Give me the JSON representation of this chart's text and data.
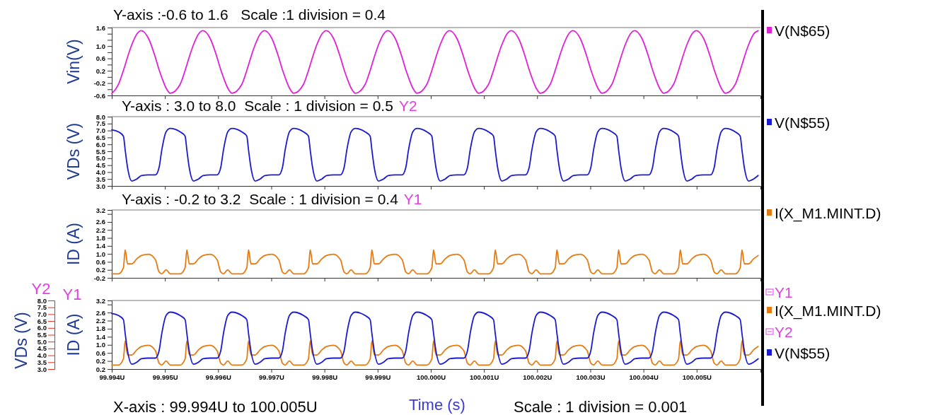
{
  "chart_data": [
    {
      "type": "line",
      "title": "Y-axis :-0.6 to 1.6   Scale :1 division = 0.4",
      "ylabel": "Vin(V)",
      "legend": "right",
      "tick_labels": "y",
      "xlim": [
        99.994,
        100.0062
      ],
      "xticks": [
        {
          "value": 99.994,
          "label": null
        },
        {
          "value": 99.995,
          "label": null
        },
        {
          "value": 99.996,
          "label": null
        },
        {
          "value": 99.997,
          "label": null
        },
        {
          "value": 99.998,
          "label": null
        },
        {
          "value": 99.999,
          "label": null
        },
        {
          "value": 100,
          "label": null
        },
        {
          "value": 100.001,
          "label": null
        },
        {
          "value": 100.002,
          "label": null
        },
        {
          "value": 100.003,
          "label": null
        },
        {
          "value": 100.004,
          "label": null
        },
        {
          "value": 100.005,
          "label": null
        }
      ],
      "ylim": [
        -0.6,
        1.6
      ],
      "yticks": [
        -0.6,
        {
          "value": -0.4,
          "label": null
        },
        -0.2,
        {
          "value": 0,
          "label": null
        },
        0.2,
        {
          "value": 0.4,
          "label": null
        },
        0.6,
        {
          "value": 0.8,
          "label": null
        },
        {
          "value": 1,
          "label": "1.0"
        },
        {
          "value": 1.2,
          "label": null
        },
        {
          "value": 1.4,
          "label": null
        },
        1.6
      ],
      "x": [
        99.994,
        99.994126,
        99.994219,
        99.994252,
        99.994298,
        99.994378,
        99.994471,
        99.994557,
        99.99469,
        99.994822,
        99.994888,
        99.994941,
        99.995021,
        99.995101,
        99.995286,
        99.995379,
        99.995412,
        99.995458,
        99.995538,
        99.995631,
        99.995717,
        99.99585,
        99.995982,
        99.996048,
        99.996101,
        99.996181,
        99.996261,
        99.996446,
        99.996539,
        99.996572,
        99.996618,
        99.996698,
        99.996791,
        99.996877,
        99.99701,
        99.997142,
        99.997208,
        99.997261,
        99.997341,
        99.997421,
        99.997606,
        99.997699,
        99.997732,
        99.997778,
        99.997858,
        99.997951,
        99.998037,
        99.99817,
        99.998302,
        99.998368,
        99.998421,
        99.998501,
        99.998581,
        99.998766,
        99.998859,
        99.998892,
        99.998938,
        99.999018,
        99.999111,
        99.999197,
        99.99933,
        99.999462,
        99.999528,
        99.999581,
        99.999661,
        99.999741,
        99.999926,
        100.000019,
        100.000052,
        100.000098,
        100.000178,
        100.000271,
        100.000357,
        100.00049,
        100.000622,
        100.000688,
        100.000741,
        100.000821,
        100.000901,
        100.001086,
        100.001179,
        100.001212,
        100.001258,
        100.001338,
        100.001431,
        100.001517,
        100.00165,
        100.001782,
        100.001848,
        100.001901,
        100.001981,
        100.002061,
        100.002246,
        100.002339,
        100.002372,
        100.002418,
        100.002498,
        100.002591,
        100.002677,
        100.00281,
        100.002942,
        100.003008,
        100.003061,
        100.003141,
        100.003221,
        100.003406,
        100.003499,
        100.003532,
        100.003578,
        100.003658,
        100.003751,
        100.003837,
        100.00397,
        100.004102,
        100.004168,
        100.004221,
        100.004301,
        100.004381,
        100.004566,
        100.004659,
        100.004692,
        100.004738,
        100.004818,
        100.004911,
        100.004997,
        100.00513,
        100.005262,
        100.005328,
        100.005381,
        100.005461,
        100.005541,
        100.005726,
        100.005819,
        100.005852,
        100.005898,
        100.005978,
        100.006071,
        100.006157
      ],
      "series": [
        {
          "name": "V(N$65)",
          "color": "#e020d8",
          "values": [
            -0.54,
            -0.24,
            0.21,
            0.39,
            0.65,
            1.05,
            1.39,
            1.5,
            1.25,
            0.62,
            0.24,
            -0.02,
            -0.36,
            -0.53,
            -0.24,
            0.21,
            0.39,
            0.65,
            1.05,
            1.39,
            1.5,
            1.25,
            0.62,
            0.24,
            -0.02,
            -0.36,
            -0.53,
            -0.24,
            0.21,
            0.39,
            0.65,
            1.05,
            1.39,
            1.5,
            1.25,
            0.62,
            0.24,
            -0.02,
            -0.36,
            -0.53,
            -0.24,
            0.21,
            0.39,
            0.65,
            1.05,
            1.39,
            1.5,
            1.25,
            0.62,
            0.24,
            -0.02,
            -0.36,
            -0.53,
            -0.24,
            0.21,
            0.39,
            0.65,
            1.05,
            1.39,
            1.5,
            1.25,
            0.62,
            0.24,
            -0.02,
            -0.36,
            -0.53,
            -0.24,
            0.21,
            0.39,
            0.65,
            1.05,
            1.39,
            1.5,
            1.25,
            0.62,
            0.24,
            -0.02,
            -0.36,
            -0.53,
            -0.24,
            0.21,
            0.39,
            0.65,
            1.05,
            1.39,
            1.5,
            1.25,
            0.62,
            0.24,
            -0.02,
            -0.36,
            -0.53,
            -0.24,
            0.21,
            0.39,
            0.65,
            1.05,
            1.39,
            1.5,
            1.25,
            0.62,
            0.24,
            -0.02,
            -0.36,
            -0.53,
            -0.24,
            0.21,
            0.39,
            0.65,
            1.05,
            1.39,
            1.5,
            1.25,
            0.62,
            0.24,
            -0.02,
            -0.36,
            -0.53,
            -0.24,
            0.21,
            0.39,
            0.65,
            1.05,
            1.39,
            1.5,
            1.25,
            0.62,
            0.24,
            -0.02,
            -0.36,
            -0.53,
            -0.24,
            0.21,
            0.39,
            0.65,
            1.05,
            1.39,
            1.5
          ]
        }
      ]
    },
    {
      "type": "line",
      "title": "Y-axis : 3.0 to 8.0  Scale : 1 division = 0.5",
      "annotations": [
        "Y2"
      ],
      "ylabel": "VDs (V)",
      "legend": "right",
      "tick_labels": "y",
      "xlim": [
        99.994,
        100.0062
      ],
      "xticks": [
        {
          "value": 99.994,
          "label": null
        },
        {
          "value": 99.995,
          "label": null
        },
        {
          "value": 99.996,
          "label": null
        },
        {
          "value": 99.997,
          "label": null
        },
        {
          "value": 99.998,
          "label": null
        },
        {
          "value": 99.999,
          "label": null
        },
        {
          "value": 100,
          "label": null
        },
        {
          "value": 100.001,
          "label": null
        },
        {
          "value": 100.002,
          "label": null
        },
        {
          "value": 100.003,
          "label": null
        },
        {
          "value": 100.004,
          "label": null
        },
        {
          "value": 100.005,
          "label": null
        }
      ],
      "ylim": [
        3,
        8
      ],
      "yticks": [
        {
          "value": 3,
          "label": "3.0"
        },
        3.5,
        {
          "value": 4,
          "label": "4.0"
        },
        4.5,
        {
          "value": 5,
          "label": "5.0"
        },
        5.5,
        {
          "value": 6,
          "label": "6.0"
        },
        6.5,
        {
          "value": 7,
          "label": "7.0"
        },
        7.5,
        {
          "value": 8,
          "label": "8.0"
        }
      ],
      "x": [
        99.994,
        99.994126,
        99.994219,
        99.994252,
        99.994298,
        99.994378,
        99.994471,
        99.994557,
        99.99469,
        99.994822,
        99.994888,
        99.994941,
        99.995021,
        99.995101,
        99.995286,
        99.995379,
        99.995412,
        99.995458,
        99.995538,
        99.995631,
        99.995717,
        99.99585,
        99.995982,
        99.996048,
        99.996101,
        99.996181,
        99.996261,
        99.996446,
        99.996539,
        99.996572,
        99.996618,
        99.996698,
        99.996791,
        99.996877,
        99.99701,
        99.997142,
        99.997208,
        99.997261,
        99.997341,
        99.997421,
        99.997606,
        99.997699,
        99.997732,
        99.997778,
        99.997858,
        99.997951,
        99.998037,
        99.99817,
        99.998302,
        99.998368,
        99.998421,
        99.998501,
        99.998581,
        99.998766,
        99.998859,
        99.998892,
        99.998938,
        99.999018,
        99.999111,
        99.999197,
        99.99933,
        99.999462,
        99.999528,
        99.999581,
        99.999661,
        99.999741,
        99.999926,
        100.000019,
        100.000052,
        100.000098,
        100.000178,
        100.000271,
        100.000357,
        100.00049,
        100.000622,
        100.000688,
        100.000741,
        100.000821,
        100.000901,
        100.001086,
        100.001179,
        100.001212,
        100.001258,
        100.001338,
        100.001431,
        100.001517,
        100.00165,
        100.001782,
        100.001848,
        100.001901,
        100.001981,
        100.002061,
        100.002246,
        100.002339,
        100.002372,
        100.002418,
        100.002498,
        100.002591,
        100.002677,
        100.00281,
        100.002942,
        100.003008,
        100.003061,
        100.003141,
        100.003221,
        100.003406,
        100.003499,
        100.003532,
        100.003578,
        100.003658,
        100.003751,
        100.003837,
        100.00397,
        100.004102,
        100.004168,
        100.004221,
        100.004301,
        100.004381,
        100.004566,
        100.004659,
        100.004692,
        100.004738,
        100.004818,
        100.004911,
        100.004997,
        100.00513,
        100.005262,
        100.005328,
        100.005381,
        100.005461,
        100.005541,
        100.005726,
        100.005819,
        100.005852,
        100.005898,
        100.005978,
        100.006071,
        100.006157
      ],
      "series": [
        {
          "name": "V(N$55)",
          "color": "#1a1ad0",
          "values": [
            7.05,
            6.9,
            6.6,
            5.6,
            4.3,
            3.35,
            3.5,
            3.75,
            3.8,
            3.8,
            4.3,
            5.6,
            6.9,
            7.15,
            6.9,
            6.6,
            5.6,
            4.3,
            3.35,
            3.5,
            3.75,
            3.8,
            3.8,
            4.3,
            5.6,
            6.9,
            7.15,
            6.9,
            6.6,
            5.6,
            4.3,
            3.35,
            3.5,
            3.75,
            3.8,
            3.8,
            4.3,
            5.6,
            6.9,
            7.15,
            6.9,
            6.6,
            5.6,
            4.3,
            3.35,
            3.5,
            3.75,
            3.8,
            3.8,
            4.3,
            5.6,
            6.9,
            7.15,
            6.9,
            6.6,
            5.6,
            4.3,
            3.35,
            3.5,
            3.75,
            3.8,
            3.8,
            4.3,
            5.6,
            6.9,
            7.15,
            6.9,
            6.6,
            5.6,
            4.3,
            3.35,
            3.5,
            3.75,
            3.8,
            3.8,
            4.3,
            5.6,
            6.9,
            7.15,
            6.9,
            6.6,
            5.6,
            4.3,
            3.35,
            3.5,
            3.75,
            3.8,
            3.8,
            4.3,
            5.6,
            6.9,
            7.15,
            6.9,
            6.6,
            5.6,
            4.3,
            3.35,
            3.5,
            3.75,
            3.8,
            3.8,
            4.3,
            5.6,
            6.9,
            7.15,
            6.9,
            6.6,
            5.6,
            4.3,
            3.35,
            3.5,
            3.75,
            3.8,
            3.8,
            4.3,
            5.6,
            6.9,
            7.15,
            6.9,
            6.6,
            5.6,
            4.3,
            3.35,
            3.5,
            3.75,
            3.8,
            3.8,
            4.3,
            5.6,
            6.9,
            7.15,
            6.9,
            6.6,
            5.6,
            4.3,
            3.35,
            3.5,
            3.75
          ]
        }
      ]
    },
    {
      "type": "line",
      "title": "Y-axis : -0.2 to 3.2  Scale : 1 division = 0.4",
      "annotations": [
        "Y1"
      ],
      "ylabel": "ID (A)",
      "legend": "right",
      "tick_labels": "y",
      "xlim": [
        99.994,
        100.0062
      ],
      "xticks": [
        {
          "value": 99.994,
          "label": null
        },
        {
          "value": 99.995,
          "label": null
        },
        {
          "value": 99.996,
          "label": null
        },
        {
          "value": 99.997,
          "label": null
        },
        {
          "value": 99.998,
          "label": null
        },
        {
          "value": 99.999,
          "label": null
        },
        {
          "value": 100,
          "label": null
        },
        {
          "value": 100.001,
          "label": null
        },
        {
          "value": 100.002,
          "label": null
        },
        {
          "value": 100.003,
          "label": null
        },
        {
          "value": 100.004,
          "label": null
        },
        {
          "value": 100.005,
          "label": null
        }
      ],
      "ylim": [
        -0.2,
        3.2
      ],
      "yticks": [
        -0.2,
        0.2,
        0.6,
        {
          "value": 1,
          "label": "1.0"
        },
        1.4,
        1.8,
        2.2,
        2.6,
        {
          "value": 3,
          "label": null
        },
        3.2
      ],
      "x": [
        99.994,
        99.994126,
        99.994219,
        99.994252,
        99.994298,
        99.994378,
        99.994471,
        99.994557,
        99.99469,
        99.994822,
        99.994888,
        99.994941,
        99.995021,
        99.995101,
        99.995286,
        99.995379,
        99.995412,
        99.995458,
        99.995538,
        99.995631,
        99.995717,
        99.99585,
        99.995982,
        99.996048,
        99.996101,
        99.996181,
        99.996261,
        99.996446,
        99.996539,
        99.996572,
        99.996618,
        99.996698,
        99.996791,
        99.996877,
        99.99701,
        99.997142,
        99.997208,
        99.997261,
        99.997341,
        99.997421,
        99.997606,
        99.997699,
        99.997732,
        99.997778,
        99.997858,
        99.997951,
        99.998037,
        99.99817,
        99.998302,
        99.998368,
        99.998421,
        99.998501,
        99.998581,
        99.998766,
        99.998859,
        99.998892,
        99.998938,
        99.999018,
        99.999111,
        99.999197,
        99.99933,
        99.999462,
        99.999528,
        99.999581,
        99.999661,
        99.999741,
        99.999926,
        100.000019,
        100.000052,
        100.000098,
        100.000178,
        100.000271,
        100.000357,
        100.00049,
        100.000622,
        100.000688,
        100.000741,
        100.000821,
        100.000901,
        100.001086,
        100.001179,
        100.001212,
        100.001258,
        100.001338,
        100.001431,
        100.001517,
        100.00165,
        100.001782,
        100.001848,
        100.001901,
        100.001981,
        100.002061,
        100.002246,
        100.002339,
        100.002372,
        100.002418,
        100.002498,
        100.002591,
        100.002677,
        100.00281,
        100.002942,
        100.003008,
        100.003061,
        100.003141,
        100.003221,
        100.003406,
        100.003499,
        100.003532,
        100.003578,
        100.003658,
        100.003751,
        100.003837,
        100.00397,
        100.004102,
        100.004168,
        100.004221,
        100.004301,
        100.004381,
        100.004566,
        100.004659,
        100.004692,
        100.004738,
        100.004818,
        100.004911,
        100.004997,
        100.00513,
        100.005262,
        100.005328,
        100.005381,
        100.005461,
        100.005541,
        100.005726,
        100.005819,
        100.005852,
        100.005898,
        100.005978,
        100.006071,
        100.006157
      ],
      "series": [
        {
          "name": "I(X_M1.MINT.D)",
          "color": "#e57a10",
          "values": [
            0,
            0,
            0.3,
            1.2,
            0.5,
            0.5,
            0.75,
            0.92,
            0.98,
            0.7,
            0.1,
            0,
            0.2,
            0,
            0,
            0.3,
            1.2,
            0.5,
            0.5,
            0.75,
            0.92,
            0.98,
            0.7,
            0.1,
            0,
            0.2,
            0,
            0,
            0.3,
            1.2,
            0.5,
            0.5,
            0.75,
            0.92,
            0.98,
            0.7,
            0.1,
            0,
            0.2,
            0,
            0,
            0.3,
            1.2,
            0.5,
            0.5,
            0.75,
            0.92,
            0.98,
            0.7,
            0.1,
            0,
            0.2,
            0,
            0,
            0.3,
            1.2,
            0.5,
            0.5,
            0.75,
            0.92,
            0.98,
            0.7,
            0.1,
            0,
            0.2,
            0,
            0,
            0.3,
            1.2,
            0.5,
            0.5,
            0.75,
            0.92,
            0.98,
            0.7,
            0.1,
            0,
            0.2,
            0,
            0,
            0.3,
            1.2,
            0.5,
            0.5,
            0.75,
            0.92,
            0.98,
            0.7,
            0.1,
            0,
            0.2,
            0,
            0,
            0.3,
            1.2,
            0.5,
            0.5,
            0.75,
            0.92,
            0.98,
            0.7,
            0.1,
            0,
            0.2,
            0,
            0,
            0.3,
            1.2,
            0.5,
            0.5,
            0.75,
            0.92,
            0.98,
            0.7,
            0.1,
            0,
            0.2,
            0,
            0,
            0.3,
            1.2,
            0.5,
            0.5,
            0.75,
            0.92,
            0.98,
            0.7,
            0.1,
            0,
            0.2,
            0,
            0,
            0.3,
            1.2,
            0.5,
            0.5,
            0.75,
            0.92
          ]
        }
      ]
    },
    {
      "type": "line",
      "annotations": [
        "Y2",
        "Y1",
        "Y1",
        "Y2",
        "X-axis : 99.994U to 100.005U",
        "Scale : 1 division = 0.001"
      ],
      "xlabel": "Time (s)",
      "ylabel": "ID (A)",
      "y2label": "VDs (V)",
      "legend": "right",
      "xlim": [
        99.994,
        100.0062
      ],
      "xticks": [
        {
          "value": 99.994,
          "label": "99.994U"
        },
        {
          "value": 99.995,
          "label": "99.995U"
        },
        {
          "value": 99.996,
          "label": "99.996U"
        },
        {
          "value": 99.997,
          "label": "99.997U"
        },
        {
          "value": 99.998,
          "label": "99.998U"
        },
        {
          "value": 99.999,
          "label": "99.999U"
        },
        {
          "value": 100,
          "label": "100.000U"
        },
        {
          "value": 100.001,
          "label": "100.001U"
        },
        {
          "value": 100.002,
          "label": "100.002U"
        },
        {
          "value": 100.003,
          "label": "100.003U"
        },
        {
          "value": 100.004,
          "label": "100.004U"
        },
        {
          "value": 100.005,
          "label": "100.005U"
        }
      ],
      "ylim": [
        -0.2,
        3.2
      ],
      "yticks": [
        {
          "value": -0.2,
          "label": "0.2"
        },
        0.2,
        0.6,
        {
          "value": 1,
          "label": "1.0"
        },
        1.4,
        1.8,
        2.2,
        2.6,
        {
          "value": 3,
          "label": null
        },
        3.2
      ],
      "y2lim": [
        3,
        8
      ],
      "y2ticks": [
        {
          "value": 3,
          "label": "3.0"
        },
        3.5,
        {
          "value": 4,
          "label": "4.0"
        },
        4.5,
        {
          "value": 5,
          "label": "5.0"
        },
        5.5,
        {
          "value": 6,
          "label": "6.0"
        },
        6.5,
        {
          "value": 7,
          "label": "7.0"
        },
        7.5,
        {
          "value": 8,
          "label": "8.0"
        }
      ],
      "x": [
        99.994,
        99.994126,
        99.994219,
        99.994252,
        99.994298,
        99.994378,
        99.994471,
        99.994557,
        99.99469,
        99.994822,
        99.994888,
        99.994941,
        99.995021,
        99.995101,
        99.995286,
        99.995379,
        99.995412,
        99.995458,
        99.995538,
        99.995631,
        99.995717,
        99.99585,
        99.995982,
        99.996048,
        99.996101,
        99.996181,
        99.996261,
        99.996446,
        99.996539,
        99.996572,
        99.996618,
        99.996698,
        99.996791,
        99.996877,
        99.99701,
        99.997142,
        99.997208,
        99.997261,
        99.997341,
        99.997421,
        99.997606,
        99.997699,
        99.997732,
        99.997778,
        99.997858,
        99.997951,
        99.998037,
        99.99817,
        99.998302,
        99.998368,
        99.998421,
        99.998501,
        99.998581,
        99.998766,
        99.998859,
        99.998892,
        99.998938,
        99.999018,
        99.999111,
        99.999197,
        99.99933,
        99.999462,
        99.999528,
        99.999581,
        99.999661,
        99.999741,
        99.999926,
        100.000019,
        100.000052,
        100.000098,
        100.000178,
        100.000271,
        100.000357,
        100.00049,
        100.000622,
        100.000688,
        100.000741,
        100.000821,
        100.000901,
        100.001086,
        100.001179,
        100.001212,
        100.001258,
        100.001338,
        100.001431,
        100.001517,
        100.00165,
        100.001782,
        100.001848,
        100.001901,
        100.001981,
        100.002061,
        100.002246,
        100.002339,
        100.002372,
        100.002418,
        100.002498,
        100.002591,
        100.002677,
        100.00281,
        100.002942,
        100.003008,
        100.003061,
        100.003141,
        100.003221,
        100.003406,
        100.003499,
        100.003532,
        100.003578,
        100.003658,
        100.003751,
        100.003837,
        100.00397,
        100.004102,
        100.004168,
        100.004221,
        100.004301,
        100.004381,
        100.004566,
        100.004659,
        100.004692,
        100.004738,
        100.004818,
        100.004911,
        100.004997,
        100.00513,
        100.005262,
        100.005328,
        100.005381,
        100.005461,
        100.005541,
        100.005726,
        100.005819,
        100.005852,
        100.005898,
        100.005978,
        100.006071,
        100.006157
      ],
      "series": [
        {
          "name": "I(X_M1.MINT.D)",
          "color": "#e57a10",
          "values": [
            0,
            0,
            0.3,
            1.2,
            0.5,
            0.5,
            0.75,
            0.92,
            0.98,
            0.7,
            0.1,
            0,
            0.2,
            0,
            0,
            0.3,
            1.2,
            0.5,
            0.5,
            0.75,
            0.92,
            0.98,
            0.7,
            0.1,
            0,
            0.2,
            0,
            0,
            0.3,
            1.2,
            0.5,
            0.5,
            0.75,
            0.92,
            0.98,
            0.7,
            0.1,
            0,
            0.2,
            0,
            0,
            0.3,
            1.2,
            0.5,
            0.5,
            0.75,
            0.92,
            0.98,
            0.7,
            0.1,
            0,
            0.2,
            0,
            0,
            0.3,
            1.2,
            0.5,
            0.5,
            0.75,
            0.92,
            0.98,
            0.7,
            0.1,
            0,
            0.2,
            0,
            0,
            0.3,
            1.2,
            0.5,
            0.5,
            0.75,
            0.92,
            0.98,
            0.7,
            0.1,
            0,
            0.2,
            0,
            0,
            0.3,
            1.2,
            0.5,
            0.5,
            0.75,
            0.92,
            0.98,
            0.7,
            0.1,
            0,
            0.2,
            0,
            0,
            0.3,
            1.2,
            0.5,
            0.5,
            0.75,
            0.92,
            0.98,
            0.7,
            0.1,
            0,
            0.2,
            0,
            0,
            0.3,
            1.2,
            0.5,
            0.5,
            0.75,
            0.92,
            0.98,
            0.7,
            0.1,
            0,
            0.2,
            0,
            0,
            0.3,
            1.2,
            0.5,
            0.5,
            0.75,
            0.92,
            0.98,
            0.7,
            0.1,
            0,
            0.2,
            0,
            0,
            0.3,
            1.2,
            0.5,
            0.5,
            0.75,
            0.92
          ]
        },
        {
          "name": "V(N$55)",
          "color": "#1a1ad0",
          "axis": "y2",
          "values": [
            7.05,
            6.9,
            6.6,
            5.6,
            4.3,
            3.35,
            3.5,
            3.75,
            3.8,
            3.8,
            4.3,
            5.6,
            6.9,
            7.15,
            6.9,
            6.6,
            5.6,
            4.3,
            3.35,
            3.5,
            3.75,
            3.8,
            3.8,
            4.3,
            5.6,
            6.9,
            7.15,
            6.9,
            6.6,
            5.6,
            4.3,
            3.35,
            3.5,
            3.75,
            3.8,
            3.8,
            4.3,
            5.6,
            6.9,
            7.15,
            6.9,
            6.6,
            5.6,
            4.3,
            3.35,
            3.5,
            3.75,
            3.8,
            3.8,
            4.3,
            5.6,
            6.9,
            7.15,
            6.9,
            6.6,
            5.6,
            4.3,
            3.35,
            3.5,
            3.75,
            3.8,
            3.8,
            4.3,
            5.6,
            6.9,
            7.15,
            6.9,
            6.6,
            5.6,
            4.3,
            3.35,
            3.5,
            3.75,
            3.8,
            3.8,
            4.3,
            5.6,
            6.9,
            7.15,
            6.9,
            6.6,
            5.6,
            4.3,
            3.35,
            3.5,
            3.75,
            3.8,
            3.8,
            4.3,
            5.6,
            6.9,
            7.15,
            6.9,
            6.6,
            5.6,
            4.3,
            3.35,
            3.5,
            3.75,
            3.8,
            3.8,
            4.3,
            5.6,
            6.9,
            7.15,
            6.9,
            6.6,
            5.6,
            4.3,
            3.35,
            3.5,
            3.75,
            3.8,
            3.8,
            4.3,
            5.6,
            6.9,
            7.15,
            6.9,
            6.6,
            5.6,
            4.3,
            3.35,
            3.5,
            3.75,
            3.8,
            3.8,
            4.3,
            5.6,
            6.9,
            7.15,
            6.9,
            6.6,
            5.6,
            4.3,
            3.35,
            3.5,
            3.75
          ]
        }
      ]
    }
  ]
}
